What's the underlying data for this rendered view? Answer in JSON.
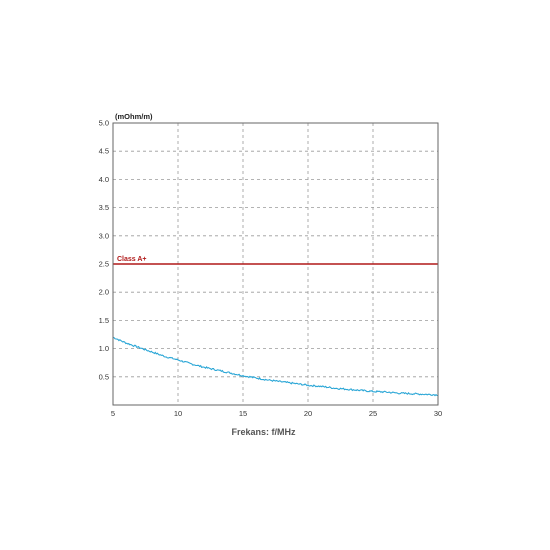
{
  "chart_data": {
    "type": "line",
    "title": "",
    "xlabel": "Frekans: f/MHz",
    "ylabel": "(mOhm/m)",
    "xlim": [
      5,
      30
    ],
    "ylim": [
      0,
      5.0
    ],
    "x_ticks": [
      "5",
      "10",
      "15",
      "20",
      "25",
      "30"
    ],
    "y_ticks": [
      "0.5",
      "1.0",
      "1.5",
      "2.0",
      "2.5",
      "3.0",
      "3.5",
      "4.0",
      "4.5",
      "5.0"
    ],
    "grid": true,
    "series": [
      {
        "color": "#2aa6d6",
        "x": [
          5,
          6,
          7,
          8,
          9,
          10,
          11,
          12,
          13,
          14,
          15,
          16,
          17,
          18,
          19,
          20,
          21,
          22,
          23,
          24,
          25,
          26,
          27,
          28,
          29,
          30
        ],
        "y": [
          1.2,
          1.1,
          1.02,
          0.94,
          0.86,
          0.8,
          0.73,
          0.67,
          0.62,
          0.57,
          0.52,
          0.48,
          0.44,
          0.41,
          0.38,
          0.35,
          0.33,
          0.3,
          0.28,
          0.26,
          0.24,
          0.23,
          0.21,
          0.2,
          0.19,
          0.18
        ]
      }
    ],
    "reference_lines": [
      {
        "label": "Class A+",
        "y": 2.5,
        "color": "#b01818"
      }
    ]
  }
}
